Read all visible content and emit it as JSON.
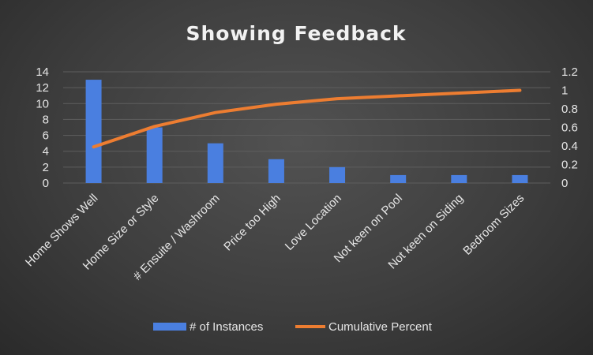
{
  "chart_data": {
    "type": "bar",
    "title": "Showing Feedback",
    "categories": [
      "Home Shows Well",
      "Home Size or Style",
      "# Ensuite / Washroom",
      "Price too High",
      "Love Location",
      "Not keen on Pool",
      "Not keen on Siding",
      "Bedroom Sizes"
    ],
    "series": [
      {
        "name": "# of Instances",
        "type": "bar",
        "axis": "left",
        "color": "#4a7fe0",
        "values": [
          13,
          7,
          5,
          3,
          2,
          1,
          1,
          1
        ]
      },
      {
        "name": "Cumulative Percent",
        "type": "line",
        "axis": "right",
        "color": "#ed7d31",
        "values": [
          0.39,
          0.61,
          0.76,
          0.85,
          0.91,
          0.94,
          0.97,
          1.0
        ]
      }
    ],
    "y_left": {
      "min": 0,
      "max": 14,
      "step": 2,
      "ticks": [
        "0",
        "2",
        "4",
        "6",
        "8",
        "10",
        "12",
        "14"
      ]
    },
    "y_right": {
      "min": 0,
      "max": 1.2,
      "step": 0.2,
      "ticks": [
        "0",
        "0.2",
        "0.4",
        "0.6",
        "0.8",
        "1",
        "1.2"
      ]
    },
    "grid": true,
    "legend_position": "bottom"
  }
}
